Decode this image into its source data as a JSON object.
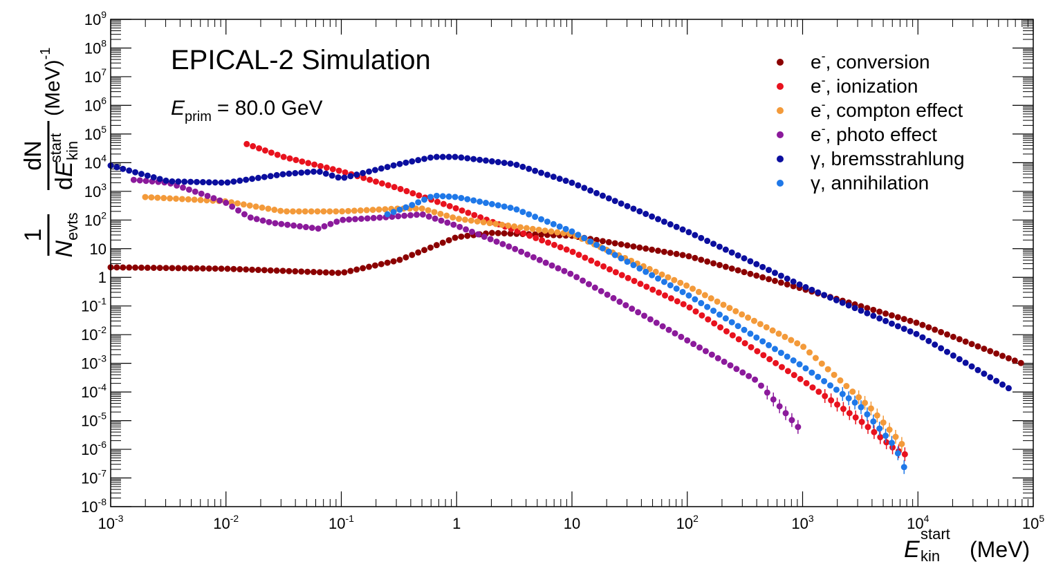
{
  "chart_data": {
    "type": "scatter",
    "title": "EPICAL-2 Simulation",
    "annotation": {
      "symbol": "E",
      "subscript": "prim",
      "value": "= 80.0 GeV"
    },
    "xlabel": {
      "symbol": "E",
      "subscript": "kin",
      "superscript": "start",
      "unit": "(MeV)"
    },
    "ylabel": {
      "num1": "1",
      "den1_symbol": "N",
      "den1_sub": "evts",
      "num2": "dN",
      "den2_prefix": "d",
      "den2_symbol": "E",
      "den2_sub": "kin",
      "den2_sup": "start",
      "unit": "(MeV)",
      "unit_sup": "-1"
    },
    "x_scale": "log",
    "y_scale": "log",
    "xlim": [
      0.001,
      100000
    ],
    "ylim": [
      1e-08,
      1000000000.0
    ],
    "legend_position": "top-right",
    "x_ticks": [
      {
        "base": "10",
        "exp": "-3"
      },
      {
        "base": "10",
        "exp": "-2"
      },
      {
        "base": "10",
        "exp": "-1"
      },
      {
        "base": "1",
        "exp": ""
      },
      {
        "base": "10",
        "exp": ""
      },
      {
        "base": "10",
        "exp": "2"
      },
      {
        "base": "10",
        "exp": "3"
      },
      {
        "base": "10",
        "exp": "4"
      },
      {
        "base": "10",
        "exp": "5"
      }
    ],
    "y_ticks": [
      {
        "base": "10",
        "exp": "-8"
      },
      {
        "base": "10",
        "exp": "-7"
      },
      {
        "base": "10",
        "exp": "-6"
      },
      {
        "base": "10",
        "exp": "-5"
      },
      {
        "base": "10",
        "exp": "-4"
      },
      {
        "base": "10",
        "exp": "-3"
      },
      {
        "base": "10",
        "exp": "-2"
      },
      {
        "base": "10",
        "exp": "-1"
      },
      {
        "base": "1",
        "exp": ""
      },
      {
        "base": "10",
        "exp": ""
      },
      {
        "base": "10",
        "exp": "2"
      },
      {
        "base": "10",
        "exp": "3"
      },
      {
        "base": "10",
        "exp": "4"
      },
      {
        "base": "10",
        "exp": "5"
      },
      {
        "base": "10",
        "exp": "6"
      },
      {
        "base": "10",
        "exp": "7"
      },
      {
        "base": "10",
        "exp": "8"
      },
      {
        "base": "10",
        "exp": "9"
      }
    ],
    "series": [
      {
        "name": "e⁻, conversion",
        "label_base": "e",
        "label_sup": "-",
        "label_rest": ", conversion",
        "color": "#8b0000",
        "shape": [
          [
            -3.0,
            0.35
          ],
          [
            -2.0,
            0.3
          ],
          [
            -1.0,
            0.15
          ],
          [
            -0.5,
            0.6
          ],
          [
            0.0,
            1.4
          ],
          [
            0.3,
            1.55
          ],
          [
            1.0,
            1.45
          ],
          [
            2.0,
            0.75
          ],
          [
            3.0,
            -0.4
          ],
          [
            4.0,
            -1.6
          ],
          [
            4.9,
            -3.0
          ]
        ],
        "npoints": 100
      },
      {
        "name": "e⁻, ionization",
        "label_base": "e",
        "label_sup": "-",
        "label_rest": ", ionization",
        "color": "#e8121e",
        "shape": [
          [
            -1.82,
            4.65
          ],
          [
            -1.5,
            4.2
          ],
          [
            -1.0,
            3.7
          ],
          [
            -0.5,
            3.1
          ],
          [
            0.0,
            2.4
          ],
          [
            1.0,
            0.9
          ],
          [
            2.0,
            -1.0
          ],
          [
            3.0,
            -3.6
          ],
          [
            3.5,
            -5.0
          ],
          [
            3.8,
            -6.0
          ],
          [
            3.9,
            -6.2
          ]
        ],
        "npoints": 80
      },
      {
        "name": "e⁻, compton effect",
        "label_base": "e",
        "label_sup": "-",
        "label_rest": ", compton effect",
        "color": "#f39a3a",
        "shape": [
          [
            -2.7,
            2.8
          ],
          [
            -2.0,
            2.65
          ],
          [
            -1.5,
            2.3
          ],
          [
            -1.0,
            2.3
          ],
          [
            -0.5,
            2.4
          ],
          [
            -0.3,
            2.4
          ],
          [
            0.0,
            2.05
          ],
          [
            1.0,
            1.5
          ],
          [
            2.0,
            -0.3
          ],
          [
            3.0,
            -2.4
          ],
          [
            3.6,
            -4.6
          ],
          [
            3.9,
            -6.0
          ]
        ],
        "npoints": 90
      },
      {
        "name": "e⁻, photo effect",
        "label_base": "e",
        "label_sup": "-",
        "label_rest": ", photo effect",
        "color": "#8b1a9b",
        "shape": [
          [
            -2.8,
            3.4
          ],
          [
            -2.5,
            3.3
          ],
          [
            -2.2,
            2.9
          ],
          [
            -2.0,
            2.6
          ],
          [
            -1.8,
            2.1
          ],
          [
            -1.6,
            1.9
          ],
          [
            -1.2,
            1.7
          ],
          [
            -1.0,
            2.0
          ],
          [
            -0.6,
            2.1
          ],
          [
            -0.3,
            2.2
          ],
          [
            0.0,
            1.8
          ],
          [
            0.5,
            1.0
          ],
          [
            1.0,
            0.1
          ],
          [
            2.0,
            -2.2
          ],
          [
            2.6,
            -3.6
          ],
          [
            3.0,
            -5.4
          ]
        ],
        "npoints": 75
      },
      {
        "name": "γ, bremsstrahlung",
        "label_base": "γ",
        "label_sup": "",
        "label_rest": ", bremsstrahlung",
        "color": "#0b0e9e",
        "shape": [
          [
            -3.0,
            3.9
          ],
          [
            -2.5,
            3.35
          ],
          [
            -2.0,
            3.3
          ],
          [
            -1.5,
            3.6
          ],
          [
            -1.2,
            3.7
          ],
          [
            -1.0,
            3.45
          ],
          [
            -0.5,
            3.95
          ],
          [
            -0.2,
            4.2
          ],
          [
            0.0,
            4.2
          ],
          [
            0.5,
            3.95
          ],
          [
            1.0,
            3.3
          ],
          [
            2.0,
            1.6
          ],
          [
            3.0,
            -0.3
          ],
          [
            4.0,
            -2.0
          ],
          [
            4.8,
            -3.9
          ]
        ],
        "npoints": 120
      },
      {
        "name": "γ, annihilation",
        "label_base": "γ",
        "label_sup": "",
        "label_rest": ", annihilation",
        "color": "#1f78e8",
        "shape": [
          [
            -0.6,
            2.2
          ],
          [
            -0.4,
            2.5
          ],
          [
            -0.2,
            2.85
          ],
          [
            0.0,
            2.8
          ],
          [
            0.5,
            2.4
          ],
          [
            1.0,
            1.6
          ],
          [
            2.0,
            -0.6
          ],
          [
            3.0,
            -3.1
          ],
          [
            3.5,
            -4.5
          ],
          [
            3.8,
            -5.9
          ],
          [
            3.9,
            -6.8
          ]
        ],
        "npoints": 70
      }
    ]
  }
}
